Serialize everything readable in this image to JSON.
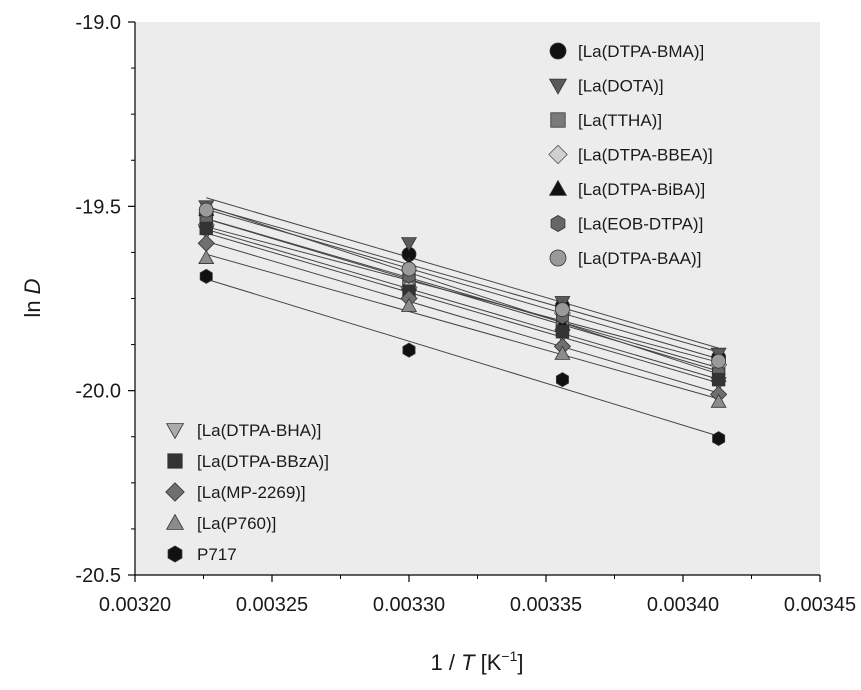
{
  "chart_data": {
    "type": "scatter",
    "xlabel": {
      "prefix": "1 / ",
      "var": "T",
      "unit_open": " [K",
      "unit_sup": "−1",
      "unit_close": "]"
    },
    "ylabel": {
      "prefix": "ln ",
      "var": "D"
    },
    "xlim": [
      0.0032,
      0.00345
    ],
    "ylim": [
      -20.5,
      -19.0
    ],
    "x_ticks": [
      "0.00320",
      "0.00325",
      "0.00330",
      "0.00335",
      "0.00340",
      "0.00345"
    ],
    "y_ticks": [
      "-19.0",
      "-19.5",
      "-20.0",
      "-20.5"
    ],
    "x": [
      0.003226,
      0.0033,
      0.003356,
      0.003413
    ],
    "grid": false,
    "plot_background": "#ececec",
    "series": [
      {
        "name": "[La(DTPA-BMA)]",
        "marker": "circle",
        "color": "#111111",
        "legend": "top-right",
        "y": [
          -19.52,
          -19.63,
          -19.77,
          -19.91
        ]
      },
      {
        "name": "[La(DOTA)]",
        "marker": "triangle-down",
        "color": "#5a5a5a",
        "legend": "top-right",
        "y": [
          -19.5,
          -19.6,
          -19.76,
          -19.9
        ]
      },
      {
        "name": "[La(TTHA)]",
        "marker": "square",
        "color": "#7a7a7a",
        "legend": "top-right",
        "y": [
          -19.53,
          -19.7,
          -19.83,
          -19.94
        ]
      },
      {
        "name": "[La(DTPA-BBEA)]",
        "marker": "diamond-open",
        "color": "#d0d0d0",
        "legend": "top-right",
        "y": [
          -19.55,
          -19.72,
          -19.79,
          -19.93
        ]
      },
      {
        "name": "[La(DTPA-BiBA)]",
        "marker": "triangle-up",
        "color": "#111111",
        "legend": "top-right",
        "y": [
          -19.51,
          -19.66,
          -19.82,
          -19.96
        ]
      },
      {
        "name": "[La(EOB-DTPA)]",
        "marker": "hexagon",
        "color": "#666666",
        "legend": "top-right",
        "y": [
          -19.54,
          -19.69,
          -19.8,
          -19.95
        ]
      },
      {
        "name": "[La(DTPA-BAA)]",
        "marker": "circle",
        "color": "#9a9a9a",
        "legend": "top-right",
        "y": [
          -19.51,
          -19.67,
          -19.78,
          -19.92
        ]
      },
      {
        "name": "[La(DTPA-BHA)]",
        "marker": "triangle-down",
        "color": "#ababab",
        "legend": "bottom-left",
        "y": [
          -19.57,
          -19.74,
          -19.85,
          -19.98
        ]
      },
      {
        "name": "[La(DTPA-BBzA)]",
        "marker": "square",
        "color": "#333333",
        "legend": "bottom-left",
        "y": [
          -19.56,
          -19.73,
          -19.84,
          -19.97
        ]
      },
      {
        "name": "[La(MP-2269)]",
        "marker": "diamond",
        "color": "#6f6f6f",
        "legend": "bottom-left",
        "y": [
          -19.6,
          -19.75,
          -19.88,
          -20.01
        ]
      },
      {
        "name": "[La(P760)]",
        "marker": "triangle-up",
        "color": "#8c8c8c",
        "legend": "bottom-left",
        "y": [
          -19.64,
          -19.77,
          -19.9,
          -20.03
        ]
      },
      {
        "name": "P717",
        "marker": "hexagon",
        "color": "#111111",
        "legend": "bottom-left",
        "y": [
          -19.69,
          -19.89,
          -19.97,
          -20.13
        ]
      }
    ]
  }
}
